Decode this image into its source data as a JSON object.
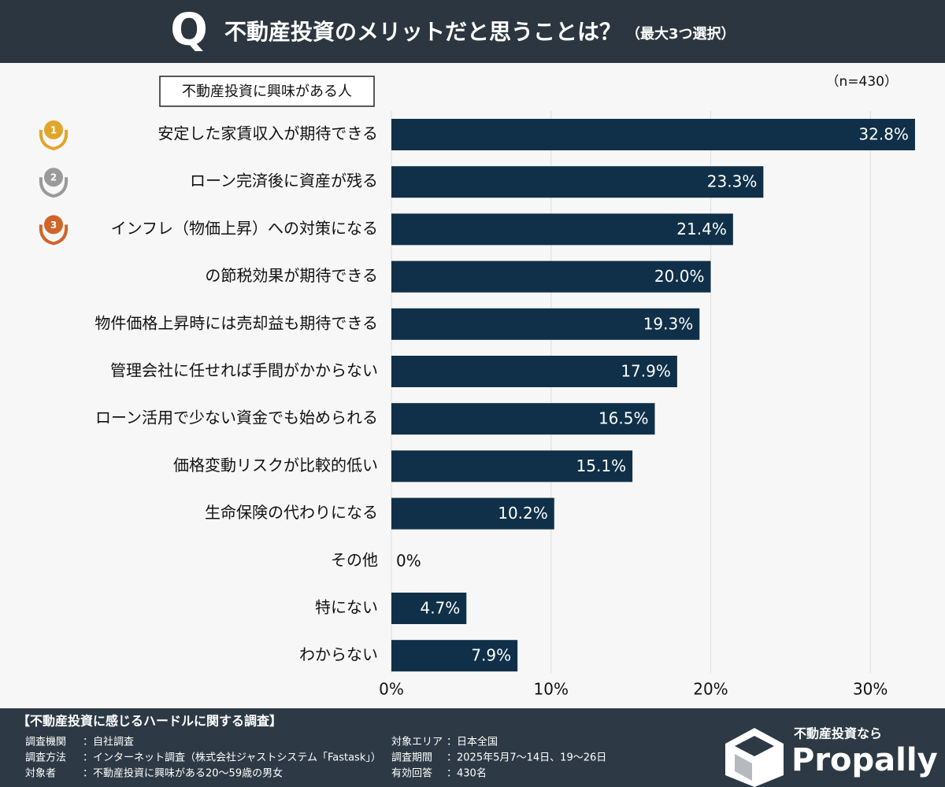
{
  "chart_data": {
    "type": "bar",
    "horizontal": true,
    "icon": "Q",
    "title": "不動産投資のメリットだと思うことは？",
    "subtitle": "（最大3つ選択）",
    "sample_size": "（n=430）",
    "categories": [
      "安定した家賃収入が期待できる",
      "ローン完済後に資産が残る",
      "インフレ（物価上昇）への対策になる",
      "の節税効果が期待できる",
      "物件価格上昇時には売却益も期待できる",
      "管理会社に任せれば手間がかからない",
      "ローン活用で少ない資金でも始められる",
      "価格変動リスクが比較的低い",
      "生命保険の代わりになる",
      "その他",
      "特にない",
      "わからない"
    ],
    "medals": [
      {
        "label": "1",
        "color": "#e0a52a"
      },
      {
        "label": "2",
        "color": "#9a9a9a"
      },
      {
        "label": "3",
        "color": "#d0642a"
      }
    ],
    "series": [
      {
        "name": "不動産投資に興味がある人",
        "color": "#0f3048",
        "values": [
          32.8,
          23.3,
          21.4,
          20.0,
          19.3,
          17.9,
          16.5,
          15.1,
          10.2,
          0,
          4.7,
          7.9
        ],
        "value_labels": [
          "32.8%",
          "23.3%",
          "21.4%",
          "20.0%",
          "19.3%",
          "17.9%",
          "16.5%",
          "15.1%",
          "10.2%",
          "0%",
          "4.7%",
          "7.9%"
        ]
      }
    ],
    "xlim": [
      0,
      33
    ],
    "xticks": [
      {
        "value": 0,
        "label": "0%"
      },
      {
        "value": 10,
        "label": "10%"
      },
      {
        "value": 20,
        "label": "20%"
      },
      {
        "value": 30,
        "label": "30%"
      }
    ],
    "grid": true
  },
  "footer": {
    "title": "【不動産投資に感じるハードルに関する調査】",
    "left": [
      [
        "調査機関",
        "：自社調査"
      ],
      [
        "調査方法",
        "：インターネット調査（株式会社ジャストシステム「Fastask」）"
      ],
      [
        "対象者",
        "：不動産投資に興味がある20〜59歳の男女"
      ]
    ],
    "right": [
      [
        "対象エリア",
        "：日本全国"
      ],
      [
        "調査期間",
        "：2025年5月7〜14日、19〜26日"
      ],
      [
        "有効回答",
        "：430名"
      ]
    ]
  },
  "brand": {
    "tagline": "不動産投資なら",
    "name": "Propally"
  }
}
